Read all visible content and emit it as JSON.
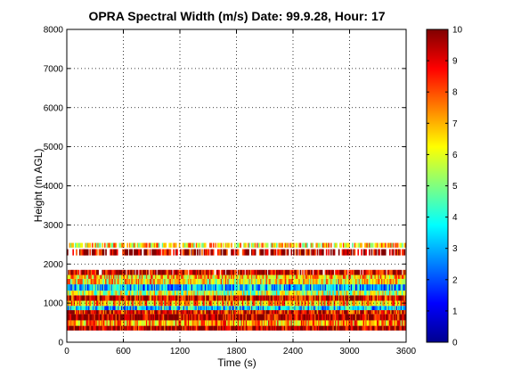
{
  "chart_data": {
    "type": "heatmap",
    "title": "OPRA Spectral Width (m/s)  Date: 99.9.28, Hour: 17",
    "xlabel": "Time (s)",
    "ylabel": "Height (m AGL)",
    "xlim": [
      0,
      3600
    ],
    "ylim": [
      0,
      8000
    ],
    "xticks": [
      "0",
      "600",
      "1200",
      "1800",
      "2400",
      "3000",
      "3600"
    ],
    "yticks": [
      "0",
      "1000",
      "2000",
      "3000",
      "4000",
      "5000",
      "6000",
      "7000",
      "8000"
    ],
    "grid": true,
    "colorbar": {
      "colormap": "jet",
      "range": [
        0,
        10
      ],
      "ticks": [
        "0",
        "1",
        "2",
        "3",
        "4",
        "5",
        "6",
        "7",
        "8",
        "9",
        "10"
      ]
    },
    "layers": [
      {
        "h0": 300,
        "h1": 420,
        "value": 9.5
      },
      {
        "h0": 420,
        "h1": 560,
        "value": 7.2
      },
      {
        "h0": 560,
        "h1": 720,
        "value": 9.6
      },
      {
        "h0": 720,
        "h1": 820,
        "value": 8.8
      },
      {
        "h0": 820,
        "h1": 930,
        "value": 3.4
      },
      {
        "h0": 930,
        "h1": 1060,
        "value": 7.0
      },
      {
        "h0": 1060,
        "h1": 1200,
        "value": 9.0
      },
      {
        "h0": 1200,
        "h1": 1320,
        "value": 5.5
      },
      {
        "h0": 1320,
        "h1": 1480,
        "value": 3.0
      },
      {
        "h0": 1480,
        "h1": 1620,
        "value": 6.5
      },
      {
        "h0": 1620,
        "h1": 1720,
        "value": 6.8
      },
      {
        "h0": 1720,
        "h1": 1850,
        "value": 9.4
      },
      {
        "h0": 2220,
        "h1": 2380,
        "value": 9.5
      },
      {
        "h0": 2420,
        "h1": 2540,
        "value": 6.5
      }
    ]
  }
}
